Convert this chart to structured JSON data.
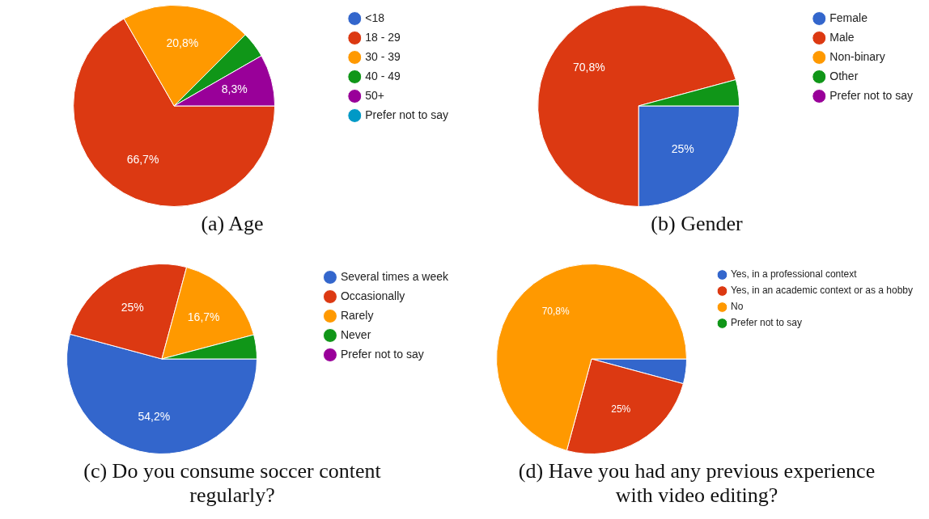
{
  "chart_data": [
    {
      "type": "pie",
      "title": "(a) Age",
      "categories": [
        "<18",
        "18 - 29",
        "30 - 39",
        "40 - 49",
        "50+",
        "Prefer not to say"
      ],
      "values": [
        0,
        66.7,
        20.8,
        4.2,
        8.3,
        0
      ],
      "colors": [
        "#3366cc",
        "#dc3912",
        "#ff9900",
        "#109618",
        "#990099",
        "#0099c6"
      ],
      "value_labels": [
        null,
        "66,7%",
        "20,8%",
        null,
        "8,3%",
        null
      ],
      "legend": "right"
    },
    {
      "type": "pie",
      "title": "(b) Gender",
      "categories": [
        "Female",
        "Male",
        "Non-binary",
        "Other",
        "Prefer not to say"
      ],
      "values": [
        25,
        70.8,
        0,
        4.2,
        0
      ],
      "colors": [
        "#3366cc",
        "#dc3912",
        "#ff9900",
        "#109618",
        "#990099"
      ],
      "value_labels": [
        "25%",
        "70,8%",
        null,
        null,
        null
      ],
      "legend": "right"
    },
    {
      "type": "pie",
      "title": "(c) Do you consume soccer content regularly?",
      "categories": [
        "Several times a week",
        "Occasionally",
        "Rarely",
        "Never",
        "Prefer not to say"
      ],
      "values": [
        54.2,
        25,
        16.7,
        4.1,
        0
      ],
      "colors": [
        "#3366cc",
        "#dc3912",
        "#ff9900",
        "#109618",
        "#990099"
      ],
      "value_labels": [
        "54,2%",
        "25%",
        "16,7%",
        null,
        null
      ],
      "legend": "right"
    },
    {
      "type": "pie",
      "title": "(d) Have you had any previous experience with video editing?",
      "categories": [
        "Yes, in a professional context",
        "Yes, in an academic context or as a hobby",
        "No",
        "Prefer not to say"
      ],
      "values": [
        4.2,
        25,
        70.8,
        0
      ],
      "colors": [
        "#3366cc",
        "#dc3912",
        "#ff9900",
        "#109618"
      ],
      "value_labels": [
        null,
        "25%",
        "70,8%",
        null
      ],
      "legend": "right"
    }
  ]
}
